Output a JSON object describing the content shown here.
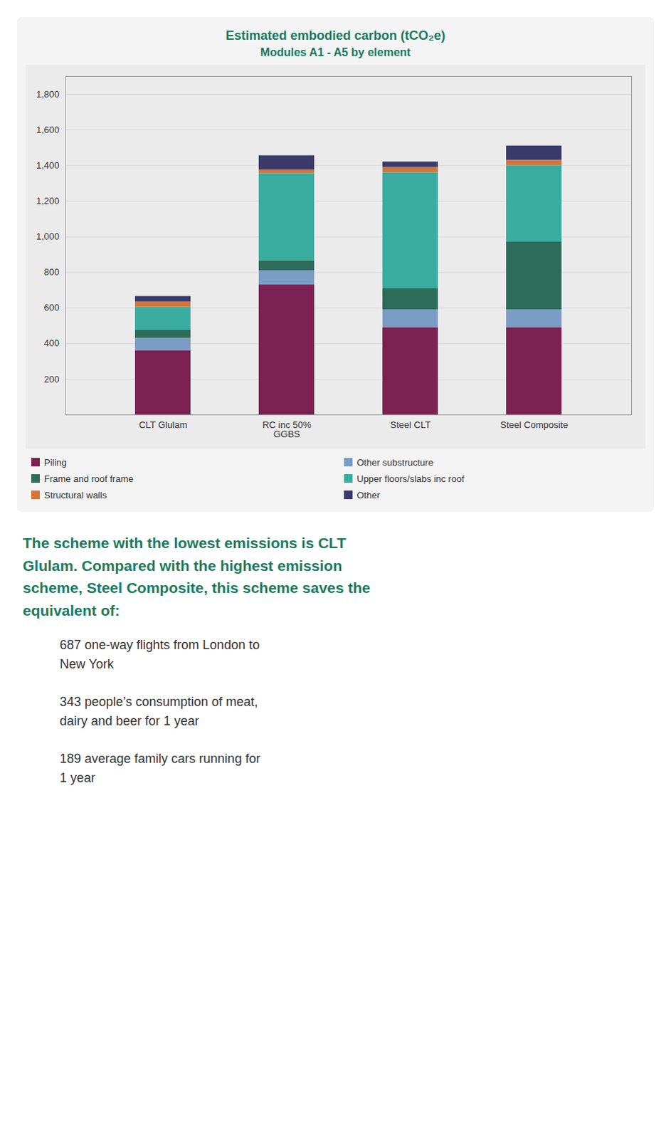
{
  "chart_data": {
    "type": "bar",
    "stacked": true,
    "title": "Estimated embodied carbon (tCO₂e)",
    "subtitle": "Modules A1 - A5 by element",
    "categories": [
      "CLT Glulam",
      "RC inc 50%\nGGBS",
      "Steel CLT",
      "Steel Composite"
    ],
    "series": [
      {
        "name": "Piling",
        "color": "#7b2252",
        "values": [
          360,
          730,
          490,
          490
        ]
      },
      {
        "name": "Other substructure",
        "color": "#7b9cc4",
        "values": [
          70,
          80,
          100,
          100
        ]
      },
      {
        "name": "Frame and roof frame",
        "color": "#2d6b5a",
        "values": [
          45,
          55,
          120,
          380
        ]
      },
      {
        "name": "Upper floors/slabs inc roof",
        "color": "#3aada0",
        "values": [
          130,
          490,
          650,
          430
        ]
      },
      {
        "name": "Structural walls",
        "color": "#d4763a",
        "values": [
          30,
          20,
          30,
          30
        ]
      },
      {
        "name": "Other",
        "color": "#3a3a6b",
        "values": [
          30,
          80,
          30,
          80
        ]
      }
    ],
    "ylim": [
      0,
      1900
    ],
    "yticks": [
      200,
      400,
      600,
      800,
      1000,
      1200,
      1400,
      1600,
      1800
    ],
    "grid": true,
    "legend": "bottom",
    "annotations": [
      "The scheme with the lowest emissions is CLT\nGlulam. Compared with the highest emission\nscheme, Steel Composite, this scheme saves the\nequivalent of:",
      "687 one-way flights from London to\nNew York",
      "343 people’s consumption of meat,\ndairy and beer for 1 year",
      "189 average family cars running for\n1 year"
    ]
  }
}
